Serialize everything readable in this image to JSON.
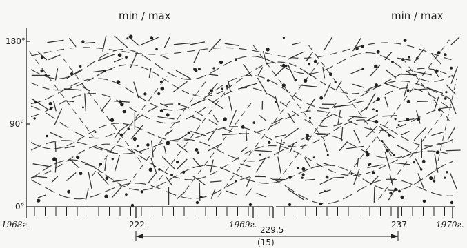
{
  "header": {
    "left_label": "min / max",
    "right_label": "min / max"
  },
  "y_axis": {
    "ticks": [
      {
        "value": 0,
        "label": "0°"
      },
      {
        "value": 90,
        "label": "90°"
      },
      {
        "value": 180,
        "label": "180°"
      }
    ]
  },
  "x_axis": {
    "ticks": [
      {
        "label": "1968г."
      },
      {
        "label": "222"
      },
      {
        "label": "1969г."
      },
      {
        "label": "229,5"
      },
      {
        "label": "237"
      },
      {
        "label": "1970г."
      }
    ]
  },
  "interval": {
    "label": "(15)"
  },
  "colors": {
    "ink": "#222222",
    "paper": "#f7f7f5"
  }
}
